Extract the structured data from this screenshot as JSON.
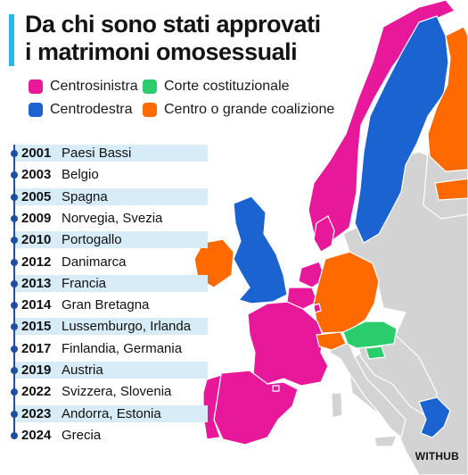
{
  "title": {
    "line1": "Da chi sono stati approvati",
    "line2": "i matrimoni omosessuali"
  },
  "legend": [
    {
      "label": "Centrosinistra",
      "color": "#e8189a"
    },
    {
      "label": "Corte costituzionale",
      "color": "#2bcc6c"
    },
    {
      "label": "Centrodestra",
      "color": "#1c63d2"
    },
    {
      "label": "Centro o grande coalizione",
      "color": "#ff6a00"
    }
  ],
  "timeline": [
    {
      "year": "2001",
      "countries": "Paesi Bassi",
      "shaded": true
    },
    {
      "year": "2003",
      "countries": "Belgio",
      "shaded": false
    },
    {
      "year": "2005",
      "countries": "Spagna",
      "shaded": true
    },
    {
      "year": "2009",
      "countries": "Norvegia, Svezia",
      "shaded": false
    },
    {
      "year": "2010",
      "countries": "Portogallo",
      "shaded": true
    },
    {
      "year": "2012",
      "countries": "Danimarca",
      "shaded": false
    },
    {
      "year": "2013",
      "countries": "Francia",
      "shaded": true
    },
    {
      "year": "2014",
      "countries": "Gran Bretagna",
      "shaded": false
    },
    {
      "year": "2015",
      "countries": "Lussemburgo, Irlanda",
      "shaded": true
    },
    {
      "year": "2017",
      "countries": "Finlandia, Germania",
      "shaded": false
    },
    {
      "year": "2019",
      "countries": "Austria",
      "shaded": true
    },
    {
      "year": "2022",
      "countries": "Svizzera, Slovenia",
      "shaded": false
    },
    {
      "year": "2023",
      "countries": "Andorra, Estonia",
      "shaded": true
    },
    {
      "year": "2024",
      "countries": "Grecia",
      "shaded": false
    }
  ],
  "credit": "WITHUB",
  "colors": {
    "centrosinistra": "#e8189a",
    "centrodestra": "#1c63d2",
    "corte": "#2bcc6c",
    "centro": "#ff6a00",
    "other_countries": "#d3d3d3",
    "timeline_band": "#d7ecf6",
    "timeline_line": "#1f4fa3"
  }
}
